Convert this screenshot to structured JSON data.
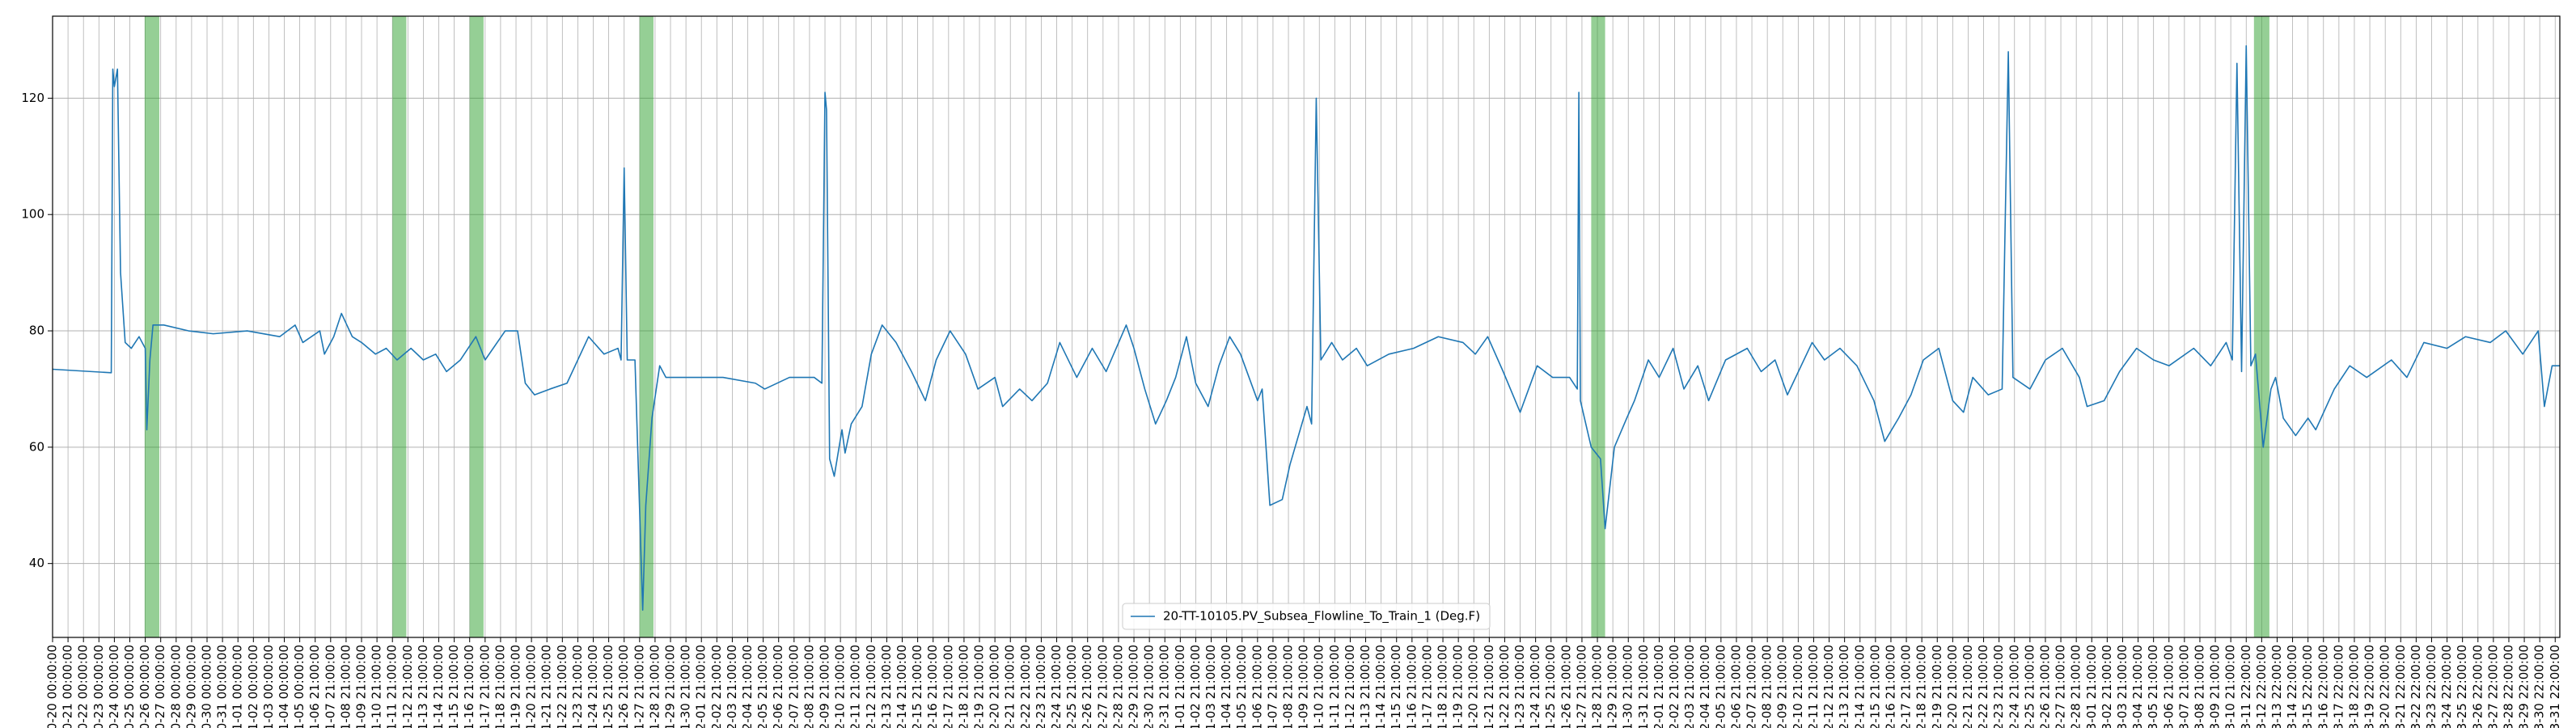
{
  "chart_data": {
    "type": "line",
    "x": [
      0,
      3.8,
      3.9,
      4.0,
      4.2,
      4.4,
      4.7,
      5.1,
      5.6,
      6.0,
      6.1,
      6.3,
      6.5,
      7.2,
      8.8,
      10.4,
      12.6,
      14.7,
      15.7,
      16.2,
      17.3,
      17.6,
      18.2,
      18.7,
      19.4,
      20.0,
      20.9,
      21.6,
      22.3,
      23.2,
      24.0,
      24.8,
      25.5,
      26.4,
      27.4,
      28.0,
      29.3,
      30.1,
      30.6,
      31.2,
      32.2,
      33.3,
      34.7,
      35.7,
      36.6,
      36.8,
      37.0,
      37.2,
      37.7,
      38.2,
      38.4,
      38.8,
      39.3,
      39.7,
      41.3,
      43.4,
      45.5,
      46.1,
      47.7,
      49.3,
      49.8,
      50.0,
      50.1,
      50.3,
      50.6,
      51.1,
      51.3,
      51.7,
      52.4,
      53.0,
      53.7,
      54.6,
      55.6,
      56.5,
      57.2,
      58.1,
      59.1,
      59.9,
      61.0,
      61.5,
      62.6,
      63.4,
      64.4,
      65.2,
      66.3,
      67.3,
      68.2,
      69.5,
      70.0,
      70.7,
      71.4,
      72.1,
      72.7,
      73.4,
      74.0,
      74.8,
      75.5,
      76.2,
      76.9,
      78.0,
      78.3,
      78.8,
      79.6,
      80.1,
      81.2,
      81.5,
      81.8,
      82.1,
      82.8,
      83.5,
      84.4,
      85.1,
      86.5,
      88.1,
      89.7,
      91.3,
      92.1,
      92.9,
      93.9,
      95.0,
      96.1,
      97.1,
      98.2,
      98.7,
      98.8,
      98.9,
      99.6,
      100.2,
      100.5,
      101.1,
      101.9,
      102.4,
      103.3,
      104.0,
      104.9,
      105.6,
      106.5,
      107.2,
      108.3,
      109.7,
      110.6,
      111.5,
      112.3,
      113.9,
      114.7,
      115.7,
      116.8,
      117.9,
      118.6,
      119.5,
      120.3,
      121.1,
      122.1,
      123.0,
      123.7,
      124.3,
      125.3,
      126.2,
      126.6,
      126.9,
      128.0,
      129.0,
      130.1,
      131.2,
      131.7,
      132.8,
      133.8,
      134.9,
      136.0,
      137.0,
      138.6,
      139.7,
      140.7,
      141.1,
      141.4,
      141.7,
      142.0,
      142.3,
      142.6,
      143.1,
      143.6,
      143.9,
      144.4,
      145.2,
      146.0,
      146.5,
      147.7,
      148.7,
      149.8,
      151.4,
      152.4,
      153.5,
      155.0,
      156.2,
      157.8,
      158.8,
      159.9,
      160.9,
      161.3,
      161.8,
      162.3
    ],
    "series": [
      {
        "name": "20-TT-10105.PV_Subsea_Flowline_To_Train_1 (Deg.F)",
        "color": "#1f77b4",
        "values": [
          73.4,
          72.8,
          125,
          122,
          125,
          90,
          78,
          77,
          79,
          77,
          63,
          75,
          81,
          81,
          80,
          79.5,
          80,
          79,
          81,
          78,
          80,
          76,
          79,
          83,
          79,
          78,
          76,
          77,
          75,
          77,
          75,
          76,
          73,
          75,
          79,
          75,
          80,
          80,
          71,
          69,
          70,
          71,
          79,
          76,
          77,
          75,
          108,
          75,
          75,
          32,
          50,
          65,
          74,
          72,
          72,
          72,
          71,
          70,
          72,
          72,
          71,
          121,
          118,
          58,
          55,
          63,
          59,
          64,
          67,
          76,
          81,
          78,
          73,
          68,
          75,
          80,
          76,
          70,
          72,
          67,
          70,
          68,
          71,
          78,
          72,
          77,
          73,
          81,
          77,
          70,
          64,
          68,
          72,
          79,
          71,
          67,
          74,
          79,
          76,
          68,
          70,
          50,
          51,
          57,
          67,
          64,
          120,
          75,
          78,
          75,
          77,
          74,
          76,
          77,
          79,
          78,
          76,
          79,
          73,
          66,
          74,
          72,
          72,
          70,
          121,
          68,
          60,
          58,
          46,
          60,
          65,
          68,
          75,
          72,
          77,
          70,
          74,
          68,
          75,
          77,
          73,
          75,
          69,
          78,
          75,
          77,
          74,
          68,
          61,
          65,
          69,
          75,
          77,
          68,
          66,
          72,
          69,
          70,
          128,
          72,
          70,
          75,
          77,
          72,
          67,
          68,
          73,
          77,
          75,
          74,
          77,
          74,
          78,
          75,
          126,
          73,
          129,
          74,
          76,
          60,
          70,
          72,
          65,
          62,
          65,
          63,
          70,
          74,
          72,
          75,
          72,
          78,
          77,
          79,
          78,
          80,
          76,
          80,
          67,
          74,
          74
        ]
      }
    ],
    "spans": [
      [
        5.96,
        6.91
      ],
      [
        22.0,
        22.9
      ],
      [
        27.0,
        27.9
      ],
      [
        38.0,
        38.9
      ],
      [
        99.6,
        100.5
      ],
      [
        142.5,
        143.5
      ]
    ],
    "span_color": "#2ca02c",
    "xlim": [
      0,
      162.3
    ],
    "ylim": [
      27.3,
      134.1
    ],
    "yticks": [
      40,
      60,
      80,
      100,
      120
    ],
    "xticks": [
      {
        "value": 0,
        "label": "0-20 00:00:00"
      },
      {
        "value": 1,
        "label": "0-21 00:00:00"
      },
      {
        "value": 2,
        "label": "0-22 00:00:00"
      },
      {
        "value": 3,
        "label": "0-23 00:00:00"
      },
      {
        "value": 4,
        "label": "0-24 00:00:00"
      },
      {
        "value": 5,
        "label": "0-25 00:00:00"
      },
      {
        "value": 6,
        "label": "0-26 00:00:00"
      },
      {
        "value": 7,
        "label": "0-27 00:00:00"
      },
      {
        "value": 8,
        "label": "0-28 00:00:00"
      },
      {
        "value": 9,
        "label": "0-29 00:00:00"
      },
      {
        "value": 10,
        "label": "0-30 00:00:00"
      },
      {
        "value": 11,
        "label": "0-31 00:00:00"
      },
      {
        "value": 12,
        "label": "1-01 00:00:00"
      },
      {
        "value": 13,
        "label": "1-02 00:00:00"
      },
      {
        "value": 14,
        "label": "1-03 00:00:00"
      },
      {
        "value": 15,
        "label": "1-04 00:00:00"
      },
      {
        "value": 16,
        "label": "1-05 00:00:00"
      },
      {
        "value": 17,
        "label": "1-06 21:00:00"
      },
      {
        "value": 18,
        "label": "1-07 21:00:00"
      },
      {
        "value": 19,
        "label": "1-08 21:00:00"
      },
      {
        "value": 20,
        "label": "1-09 21:00:00"
      },
      {
        "value": 21,
        "label": "1-10 21:00:00"
      },
      {
        "value": 22,
        "label": "1-11 21:00:00"
      },
      {
        "value": 23,
        "label": "1-12 21:00:00"
      },
      {
        "value": 24,
        "label": "1-13 21:00:00"
      },
      {
        "value": 25,
        "label": "1-14 21:00:00"
      },
      {
        "value": 26,
        "label": "1-15 21:00:00"
      },
      {
        "value": 27,
        "label": "1-16 21:00:00"
      },
      {
        "value": 28,
        "label": "1-17 21:00:00"
      },
      {
        "value": 29,
        "label": "1-18 21:00:00"
      },
      {
        "value": 30,
        "label": "1-19 21:00:00"
      },
      {
        "value": 31,
        "label": "1-20 21:00:00"
      },
      {
        "value": 32,
        "label": "1-21 21:00:00"
      },
      {
        "value": 33,
        "label": "1-22 21:00:00"
      },
      {
        "value": 34,
        "label": "1-23 21:00:00"
      },
      {
        "value": 35,
        "label": "1-24 21:00:00"
      },
      {
        "value": 36,
        "label": "1-25 21:00:00"
      },
      {
        "value": 37,
        "label": "1-26 21:00:00"
      },
      {
        "value": 38,
        "label": "1-27 21:00:00"
      },
      {
        "value": 39,
        "label": "1-28 21:00:00"
      },
      {
        "value": 40,
        "label": "1-29 21:00:00"
      },
      {
        "value": 41,
        "label": "1-30 21:00:00"
      },
      {
        "value": 42,
        "label": "2-01 21:00:00"
      },
      {
        "value": 43,
        "label": "2-02 21:00:00"
      },
      {
        "value": 44,
        "label": "2-03 21:00:00"
      },
      {
        "value": 45,
        "label": "2-04 21:00:00"
      },
      {
        "value": 46,
        "label": "2-05 21:00:00"
      },
      {
        "value": 47,
        "label": "2-06 21:00:00"
      },
      {
        "value": 48,
        "label": "2-07 21:00:00"
      },
      {
        "value": 49,
        "label": "2-08 21:00:00"
      },
      {
        "value": 50,
        "label": "2-09 21:00:00"
      },
      {
        "value": 51,
        "label": "2-10 21:00:00"
      },
      {
        "value": 52,
        "label": "2-11 21:00:00"
      },
      {
        "value": 53,
        "label": "2-12 21:00:00"
      },
      {
        "value": 54,
        "label": "2-13 21:00:00"
      },
      {
        "value": 55,
        "label": "2-14 21:00:00"
      },
      {
        "value": 56,
        "label": "2-15 21:00:00"
      },
      {
        "value": 57,
        "label": "2-16 21:00:00"
      },
      {
        "value": 58,
        "label": "2-17 21:00:00"
      },
      {
        "value": 59,
        "label": "2-18 21:00:00"
      },
      {
        "value": 60,
        "label": "2-19 21:00:00"
      },
      {
        "value": 61,
        "label": "2-20 21:00:00"
      },
      {
        "value": 62,
        "label": "2-21 21:00:00"
      },
      {
        "value": 63,
        "label": "2-22 21:00:00"
      },
      {
        "value": 64,
        "label": "2-23 21:00:00"
      },
      {
        "value": 65,
        "label": "2-24 21:00:00"
      },
      {
        "value": 66,
        "label": "2-25 21:00:00"
      },
      {
        "value": 67,
        "label": "2-26 21:00:00"
      },
      {
        "value": 68,
        "label": "2-27 21:00:00"
      },
      {
        "value": 69,
        "label": "2-28 21:00:00"
      },
      {
        "value": 70,
        "label": "2-29 21:00:00"
      },
      {
        "value": 71,
        "label": "2-30 21:00:00"
      },
      {
        "value": 72,
        "label": "2-31 21:00:00"
      },
      {
        "value": 73,
        "label": "1-01 21:00:00"
      },
      {
        "value": 74,
        "label": "1-02 21:00:00"
      },
      {
        "value": 75,
        "label": "1-03 21:00:00"
      },
      {
        "value": 76,
        "label": "1-04 21:00:00"
      },
      {
        "value": 77,
        "label": "1-05 21:00:00"
      },
      {
        "value": 78,
        "label": "1-06 21:00:00"
      },
      {
        "value": 79,
        "label": "1-07 21:00:00"
      },
      {
        "value": 80,
        "label": "1-08 21:00:00"
      },
      {
        "value": 81,
        "label": "1-09 21:00:00"
      },
      {
        "value": 82,
        "label": "1-10 21:00:00"
      },
      {
        "value": 83,
        "label": "1-11 21:00:00"
      },
      {
        "value": 84,
        "label": "1-12 21:00:00"
      },
      {
        "value": 85,
        "label": "1-13 21:00:00"
      },
      {
        "value": 86,
        "label": "1-14 21:00:00"
      },
      {
        "value": 87,
        "label": "1-15 21:00:00"
      },
      {
        "value": 88,
        "label": "1-16 21:00:00"
      },
      {
        "value": 89,
        "label": "1-17 21:00:00"
      },
      {
        "value": 90,
        "label": "1-18 21:00:00"
      },
      {
        "value": 91,
        "label": "1-19 21:00:00"
      },
      {
        "value": 92,
        "label": "1-20 21:00:00"
      },
      {
        "value": 93,
        "label": "1-21 21:00:00"
      },
      {
        "value": 94,
        "label": "1-22 21:00:00"
      },
      {
        "value": 95,
        "label": "1-23 21:00:00"
      },
      {
        "value": 96,
        "label": "1-24 21:00:00"
      },
      {
        "value": 97,
        "label": "1-25 21:00:00"
      },
      {
        "value": 98,
        "label": "1-26 21:00:00"
      },
      {
        "value": 99,
        "label": "1-27 21:00:00"
      },
      {
        "value": 100,
        "label": "1-28 21:00:00"
      },
      {
        "value": 101,
        "label": "1-29 21:00:00"
      },
      {
        "value": 102,
        "label": "1-30 21:00:00"
      },
      {
        "value": 103,
        "label": "1-31 21:00:00"
      },
      {
        "value": 104,
        "label": "2-01 21:00:00"
      },
      {
        "value": 105,
        "label": "2-02 21:00:00"
      },
      {
        "value": 106,
        "label": "2-03 21:00:00"
      },
      {
        "value": 107,
        "label": "2-04 21:00:00"
      },
      {
        "value": 108,
        "label": "2-05 21:00:00"
      },
      {
        "value": 109,
        "label": "2-06 21:00:00"
      },
      {
        "value": 110,
        "label": "2-07 21:00:00"
      },
      {
        "value": 111,
        "label": "2-08 21:00:00"
      },
      {
        "value": 112,
        "label": "2-09 21:00:00"
      },
      {
        "value": 113,
        "label": "2-10 21:00:00"
      },
      {
        "value": 114,
        "label": "2-11 21:00:00"
      },
      {
        "value": 115,
        "label": "2-12 21:00:00"
      },
      {
        "value": 116,
        "label": "2-13 21:00:00"
      },
      {
        "value": 117,
        "label": "2-14 21:00:00"
      },
      {
        "value": 118,
        "label": "2-15 21:00:00"
      },
      {
        "value": 119,
        "label": "2-16 21:00:00"
      },
      {
        "value": 120,
        "label": "2-17 21:00:00"
      },
      {
        "value": 121,
        "label": "2-18 21:00:00"
      },
      {
        "value": 122,
        "label": "2-19 21:00:00"
      },
      {
        "value": 123,
        "label": "2-20 21:00:00"
      },
      {
        "value": 124,
        "label": "2-21 21:00:00"
      },
      {
        "value": 125,
        "label": "2-22 21:00:00"
      },
      {
        "value": 126,
        "label": "2-23 21:00:00"
      },
      {
        "value": 127,
        "label": "2-24 21:00:00"
      },
      {
        "value": 128,
        "label": "2-25 21:00:00"
      },
      {
        "value": 129,
        "label": "2-26 21:00:00"
      },
      {
        "value": 130,
        "label": "2-27 21:00:00"
      },
      {
        "value": 131,
        "label": "2-28 21:00:00"
      },
      {
        "value": 132,
        "label": "3-01 21:00:00"
      },
      {
        "value": 133,
        "label": "3-02 21:00:00"
      },
      {
        "value": 134,
        "label": "3-03 21:00:00"
      },
      {
        "value": 135,
        "label": "3-04 21:00:00"
      },
      {
        "value": 136,
        "label": "3-05 21:00:00"
      },
      {
        "value": 137,
        "label": "3-06 21:00:00"
      },
      {
        "value": 138,
        "label": "3-07 21:00:00"
      },
      {
        "value": 139,
        "label": "3-08 21:00:00"
      },
      {
        "value": 140,
        "label": "3-09 21:00:00"
      },
      {
        "value": 141,
        "label": "3-10 21:00:00"
      },
      {
        "value": 142,
        "label": "3-11 22:00:00"
      },
      {
        "value": 143,
        "label": "3-12 22:00:00"
      },
      {
        "value": 144,
        "label": "3-13 22:00:00"
      },
      {
        "value": 145,
        "label": "3-14 22:00:00"
      },
      {
        "value": 146,
        "label": "3-15 22:00:00"
      },
      {
        "value": 147,
        "label": "3-16 22:00:00"
      },
      {
        "value": 148,
        "label": "3-17 22:00:00"
      },
      {
        "value": 149,
        "label": "3-18 22:00:00"
      },
      {
        "value": 150,
        "label": "3-19 22:00:00"
      },
      {
        "value": 151,
        "label": "3-20 22:00:00"
      },
      {
        "value": 152,
        "label": "3-21 22:00:00"
      },
      {
        "value": 153,
        "label": "3-22 22:00:00"
      },
      {
        "value": 154,
        "label": "3-23 22:00:00"
      },
      {
        "value": 155,
        "label": "3-24 22:00:00"
      },
      {
        "value": 156,
        "label": "3-25 22:00:00"
      },
      {
        "value": 157,
        "label": "3-26 22:00:00"
      },
      {
        "value": 158,
        "label": "3-27 22:00:00"
      },
      {
        "value": 159,
        "label": "3-28 22:00:00"
      },
      {
        "value": 160,
        "label": "3-29 22:00:00"
      },
      {
        "value": 161,
        "label": "3-30 22:00:00"
      },
      {
        "value": 162,
        "label": "3-31 22:00:00"
      }
    ],
    "grid": true,
    "legend": "lower center"
  }
}
